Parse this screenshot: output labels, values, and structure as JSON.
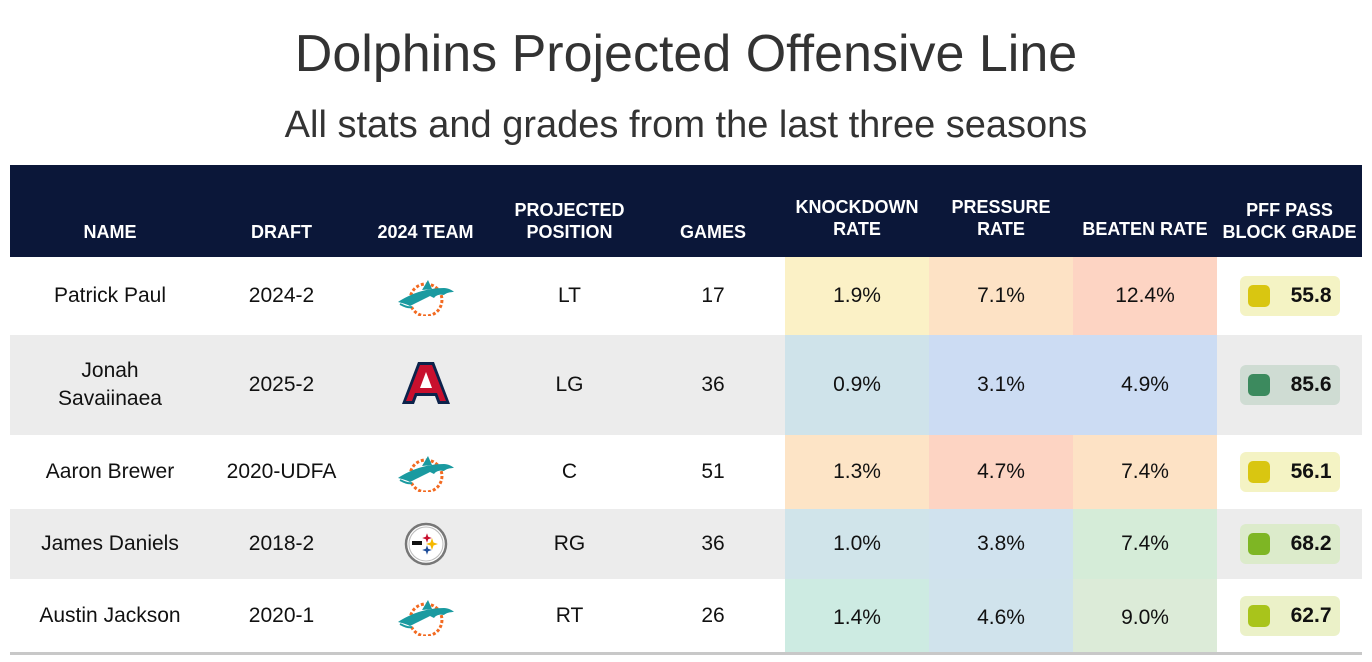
{
  "chart_data": {
    "type": "table",
    "title": "Dolphins Projected Offensive Line",
    "subtitle": "All stats and grades from the last three seasons",
    "columns": [
      "NAME",
      "DRAFT",
      "2024 TEAM",
      "PROJECTED POSITION",
      "GAMES",
      "KNOCKDOWN RATE",
      "PRESSURE RATE",
      "BEATEN RATE",
      "PFF PASS BLOCK GRADE"
    ],
    "rows": [
      {
        "name": "Patrick Paul",
        "draft": "2024-2",
        "team": "Dolphins",
        "team_icon": "dolphins-logo-icon",
        "position": "LT",
        "games": "17",
        "knockdown": "1.9%",
        "pressure": "7.1%",
        "beaten": "12.4%",
        "grade": "55.8",
        "colors": {
          "knockdown": "#fbf1c6",
          "pressure": "#fde2c5",
          "beaten": "#fdd4c3",
          "grade_bg": "#f4f3c4",
          "grade_dot": "#d9c611"
        }
      },
      {
        "name": "Jonah Savaiinaea",
        "draft": "2025-2",
        "team": "Arizona",
        "team_icon": "arizona-logo-icon",
        "position": "LG",
        "games": "36",
        "knockdown": "0.9%",
        "pressure": "3.1%",
        "beaten": "4.9%",
        "grade": "85.6",
        "colors": {
          "knockdown": "#cfe3ea",
          "pressure": "#ccdcf3",
          "beaten": "#ccdcf3",
          "grade_bg": "#cfdcd3",
          "grade_dot": "#3c8a5e"
        }
      },
      {
        "name": "Aaron Brewer",
        "draft": "2020-UDFA",
        "team": "Dolphins",
        "team_icon": "dolphins-logo-icon",
        "position": "C",
        "games": "51",
        "knockdown": "1.3%",
        "pressure": "4.7%",
        "beaten": "7.4%",
        "grade": "56.1",
        "colors": {
          "knockdown": "#fde4c6",
          "pressure": "#fdd4c3",
          "beaten": "#fde2c5",
          "grade_bg": "#f4f3c4",
          "grade_dot": "#d9c611"
        }
      },
      {
        "name": "James Daniels",
        "draft": "2018-2",
        "team": "Steelers",
        "team_icon": "steelers-logo-icon",
        "position": "RG",
        "games": "36",
        "knockdown": "1.0%",
        "pressure": "3.8%",
        "beaten": "7.4%",
        "grade": "68.2",
        "colors": {
          "knockdown": "#d0e4ea",
          "pressure": "#d0e2ee",
          "beaten": "#d5ecd8",
          "grade_bg": "#dcebcb",
          "grade_dot": "#7eb624"
        }
      },
      {
        "name": "Austin Jackson",
        "draft": "2020-1",
        "team": "Dolphins",
        "team_icon": "dolphins-logo-icon",
        "position": "RT",
        "games": "26",
        "knockdown": "1.4%",
        "pressure": "4.6%",
        "beaten": "9.0%",
        "grade": "62.7",
        "colors": {
          "knockdown": "#cdebe2",
          "pressure": "#d0e3ec",
          "beaten": "#dcebd8",
          "grade_bg": "#ebf1c8",
          "grade_dot": "#a9c41b"
        }
      }
    ]
  },
  "colors": {
    "header_bg": "#0b1739",
    "dolphins_aqua": "#1a9aa0",
    "dolphins_orange": "#f26a21",
    "arizona_red": "#c8102e",
    "arizona_navy": "#0c234b"
  }
}
